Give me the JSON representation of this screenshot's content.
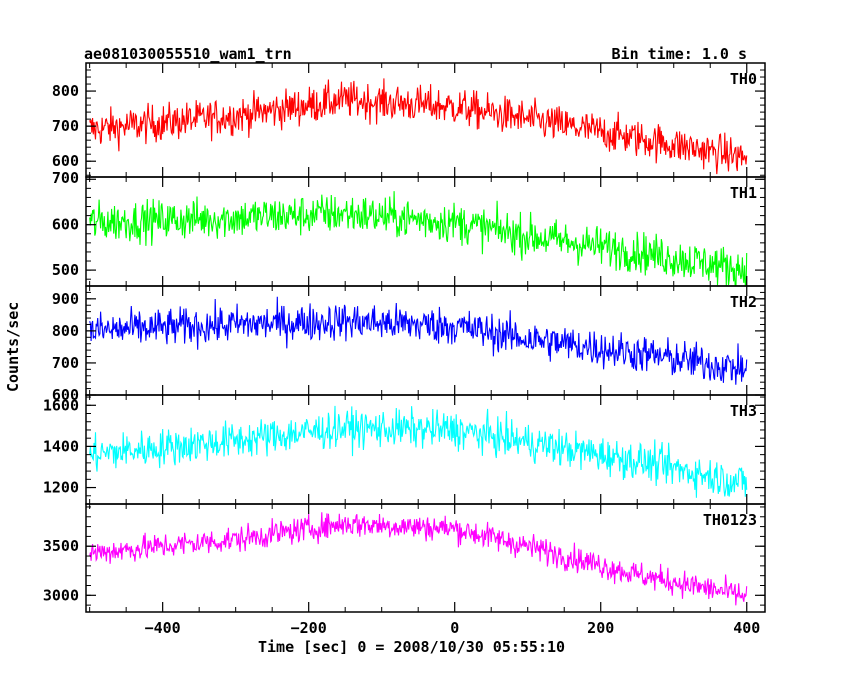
{
  "title": "ae081030055510_wam1_trn",
  "bin_time": "Bin time: 1.0 s",
  "chart_data": {
    "type": "line",
    "xlabel": "Time [sec] 0 = 2008/10/30 05:55:10",
    "ylabel": "Counts/sec",
    "xlim": [
      -505,
      425
    ],
    "xticks": [
      -400,
      -200,
      0,
      200,
      400
    ],
    "x_start": -500,
    "x_end": 400,
    "panels": [
      {
        "name": "TH0",
        "color": "#ff0000",
        "ylim": [
          555,
          880
        ],
        "yticks": [
          600,
          700,
          800
        ],
        "tick_labels": [
          "600",
          "700",
          "800"
        ],
        "bottom_label": "700",
        "trend": [
          [
            -500,
            690
          ],
          [
            -300,
            730
          ],
          [
            -150,
            775
          ],
          [
            0,
            755
          ],
          [
            100,
            720
          ],
          [
            250,
            665
          ],
          [
            400,
            610
          ]
        ],
        "noise": 38
      },
      {
        "name": "TH1",
        "color": "#00ff00",
        "ylim": [
          465,
          705
        ],
        "yticks": [
          500,
          600,
          700
        ],
        "tick_labels": [
          "500",
          "600"
        ],
        "trend": [
          [
            -500,
            605
          ],
          [
            -300,
            615
          ],
          [
            -150,
            625
          ],
          [
            0,
            605
          ],
          [
            100,
            575
          ],
          [
            250,
            540
          ],
          [
            400,
            500
          ]
        ],
        "noise": 32
      },
      {
        "name": "TH2",
        "color": "#0000ff",
        "ylim": [
          600,
          940
        ],
        "yticks": [
          600,
          700,
          800,
          900
        ],
        "tick_labels": [
          "600",
          "700",
          "800",
          "900"
        ],
        "trend": [
          [
            -500,
            800
          ],
          [
            -300,
            820
          ],
          [
            -150,
            830
          ],
          [
            0,
            815
          ],
          [
            100,
            775
          ],
          [
            250,
            730
          ],
          [
            400,
            680
          ]
        ],
        "noise": 42
      },
      {
        "name": "TH3",
        "color": "#00ffff",
        "ylim": [
          1120,
          1650
        ],
        "yticks": [
          1200,
          1400,
          1600
        ],
        "tick_labels": [
          "1200",
          "1400",
          "1600"
        ],
        "trend": [
          [
            -500,
            1360
          ],
          [
            -300,
            1430
          ],
          [
            -150,
            1490
          ],
          [
            0,
            1480
          ],
          [
            100,
            1420
          ],
          [
            250,
            1330
          ],
          [
            400,
            1220
          ]
        ],
        "noise": 65
      },
      {
        "name": "TH0123",
        "color": "#ff00ff",
        "ylim": [
          2830,
          3930
        ],
        "yticks": [
          3000,
          3500
        ],
        "tick_labels": [
          "3000",
          "3500"
        ],
        "trend": [
          [
            -500,
            3430
          ],
          [
            -300,
            3570
          ],
          [
            -150,
            3730
          ],
          [
            0,
            3680
          ],
          [
            100,
            3500
          ],
          [
            250,
            3210
          ],
          [
            400,
            2990
          ]
        ],
        "noise": 95
      }
    ]
  }
}
